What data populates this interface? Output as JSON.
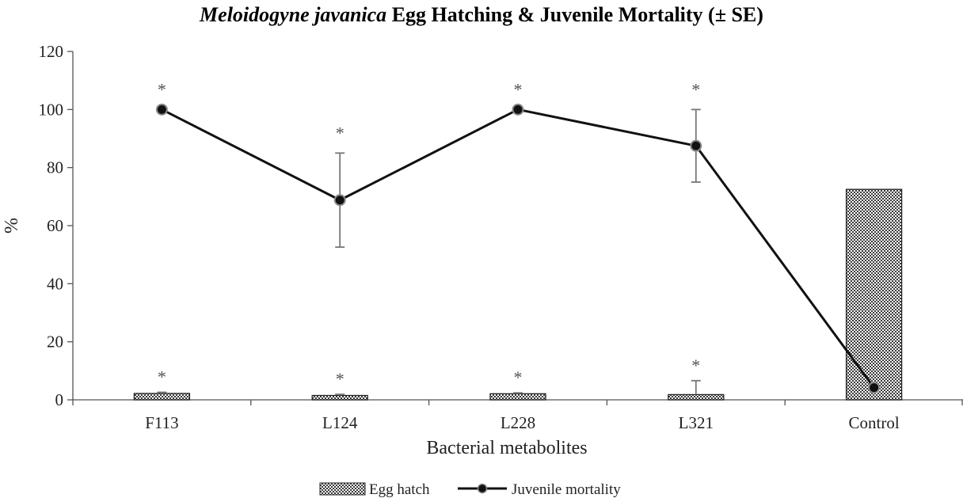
{
  "chart_data": {
    "type": "bar",
    "title_italic": "Meloidogyne javanica",
    "title_rest": " Egg Hatching & Juvenile Mortality (± SE)",
    "xlabel": "Bacterial metabolites",
    "ylabel": "%",
    "ylim": [
      0,
      120
    ],
    "yticks": [
      0,
      20,
      40,
      60,
      80,
      100,
      120
    ],
    "ytick_labels": [
      "0",
      "20",
      "40",
      "60",
      "80",
      "100",
      "120"
    ],
    "categories": [
      "F113",
      "L124",
      "L228",
      "L321",
      "Control"
    ],
    "grid": false,
    "legend_position": "bottom",
    "significance_marker": "*",
    "series": [
      {
        "name": "Egg hatch",
        "kind": "bar",
        "values": [
          2.2,
          1.5,
          2.1,
          1.8,
          72.5
        ],
        "errors": [
          0.4,
          0.4,
          0.3,
          4.8,
          0
        ],
        "significant": [
          true,
          true,
          true,
          true,
          false
        ]
      },
      {
        "name": "Juvenile mortality",
        "kind": "line",
        "values": [
          100,
          68.8,
          100,
          87.5,
          4.2
        ],
        "errors": [
          0,
          16.2,
          0,
          12.5,
          0
        ],
        "significant": [
          true,
          true,
          true,
          true,
          false
        ]
      }
    ]
  }
}
